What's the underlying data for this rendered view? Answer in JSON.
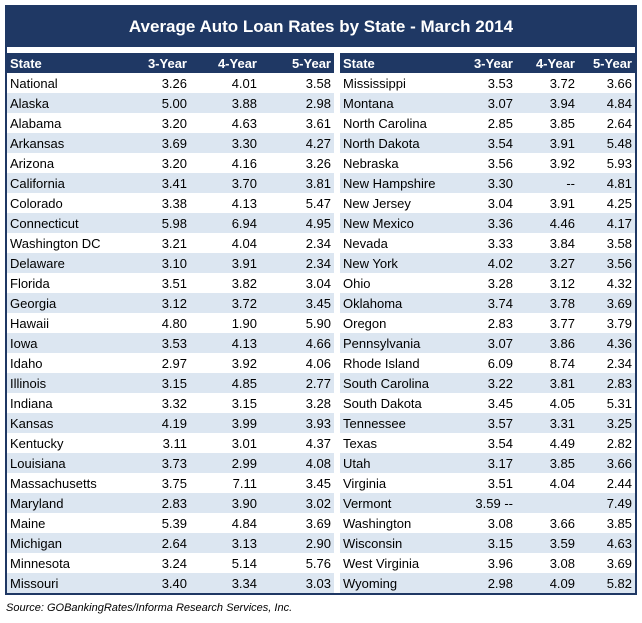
{
  "chart_data": {
    "type": "table",
    "title": "Average Auto Loan Rates by State - March 2014",
    "columns": [
      "State",
      "3-Year",
      "4-Year",
      "5-Year"
    ],
    "left_rows": [
      [
        "National",
        "3.26",
        "4.01",
        "3.58"
      ],
      [
        "Alaska",
        "5.00",
        "3.88",
        "2.98"
      ],
      [
        "Alabama",
        "3.20",
        "4.63",
        "3.61"
      ],
      [
        "Arkansas",
        "3.69",
        "3.30",
        "4.27"
      ],
      [
        "Arizona",
        "3.20",
        "4.16",
        "3.26"
      ],
      [
        "California",
        "3.41",
        "3.70",
        "3.81"
      ],
      [
        "Colorado",
        "3.38",
        "4.13",
        "5.47"
      ],
      [
        "Connecticut",
        "5.98",
        "6.94",
        "4.95"
      ],
      [
        "Washington DC",
        "3.21",
        "4.04",
        "2.34"
      ],
      [
        "Delaware",
        "3.10",
        "3.91",
        "2.34"
      ],
      [
        "Florida",
        "3.51",
        "3.82",
        "3.04"
      ],
      [
        "Georgia",
        "3.12",
        "3.72",
        "3.45"
      ],
      [
        "Hawaii",
        "4.80",
        "1.90",
        "5.90"
      ],
      [
        "Iowa",
        "3.53",
        "4.13",
        "4.66"
      ],
      [
        "Idaho",
        "2.97",
        "3.92",
        "4.06"
      ],
      [
        "Illinois",
        "3.15",
        "4.85",
        "2.77"
      ],
      [
        "Indiana",
        "3.32",
        "3.15",
        "3.28"
      ],
      [
        "Kansas",
        "4.19",
        "3.99",
        "3.93"
      ],
      [
        "Kentucky",
        "3.11",
        "3.01",
        "4.37"
      ],
      [
        "Louisiana",
        "3.73",
        "2.99",
        "4.08"
      ],
      [
        "Massachusetts",
        "3.75",
        "7.11",
        "3.45"
      ],
      [
        "Maryland",
        "2.83",
        "3.90",
        "3.02"
      ],
      [
        "Maine",
        "5.39",
        "4.84",
        "3.69"
      ],
      [
        "Michigan",
        "2.64",
        "3.13",
        "2.90"
      ],
      [
        "Minnesota",
        "3.24",
        "5.14",
        "5.76"
      ],
      [
        "Missouri",
        "3.40",
        "3.34",
        "3.03"
      ]
    ],
    "right_rows": [
      [
        "Mississippi",
        "3.53",
        "3.72",
        "3.66"
      ],
      [
        "Montana",
        "3.07",
        "3.94",
        "4.84"
      ],
      [
        "North Carolina",
        "2.85",
        "3.85",
        "2.64"
      ],
      [
        "North Dakota",
        "3.54",
        "3.91",
        "5.48"
      ],
      [
        "Nebraska",
        "3.56",
        "3.92",
        "5.93"
      ],
      [
        "New Hampshire",
        "3.30",
        "--",
        "4.81"
      ],
      [
        "New Jersey",
        "3.04",
        "3.91",
        "4.25"
      ],
      [
        "New Mexico",
        "3.36",
        "4.46",
        "4.17"
      ],
      [
        "Nevada",
        "3.33",
        "3.84",
        "3.58"
      ],
      [
        "New York",
        "4.02",
        "3.27",
        "3.56"
      ],
      [
        "Ohio",
        "3.28",
        "3.12",
        "4.32"
      ],
      [
        "Oklahoma",
        "3.74",
        "3.78",
        "3.69"
      ],
      [
        "Oregon",
        "2.83",
        "3.77",
        "3.79"
      ],
      [
        "Pennsylvania",
        "3.07",
        "3.86",
        "4.36"
      ],
      [
        "Rhode Island",
        "6.09",
        "8.74",
        "2.34"
      ],
      [
        "South Carolina",
        "3.22",
        "3.81",
        "2.83"
      ],
      [
        "South Dakota",
        "3.45",
        "4.05",
        "5.31"
      ],
      [
        "Tennessee",
        "3.57",
        "3.31",
        "3.25"
      ],
      [
        "Texas",
        "3.54",
        "4.49",
        "2.82"
      ],
      [
        "Utah",
        "3.17",
        "3.85",
        "3.66"
      ],
      [
        "Virginia",
        "3.51",
        "4.04",
        "2.44"
      ],
      [
        "Vermont",
        "3.59 --",
        "",
        "7.49"
      ],
      [
        "Washington",
        "3.08",
        "3.66",
        "3.85"
      ],
      [
        "Wisconsin",
        "3.15",
        "3.59",
        "4.63"
      ],
      [
        "West Virginia",
        "3.96",
        "3.08",
        "3.69"
      ],
      [
        "Wyoming",
        "2.98",
        "4.09",
        "5.82"
      ]
    ]
  },
  "source": "Source: GOBankingRates/Informa Research Services, Inc.",
  "colors": {
    "header_bg": "#1f3864",
    "header_text": "#ffffff",
    "row_alt_bg": "#dce6f1",
    "row_bg": "#ffffff"
  }
}
